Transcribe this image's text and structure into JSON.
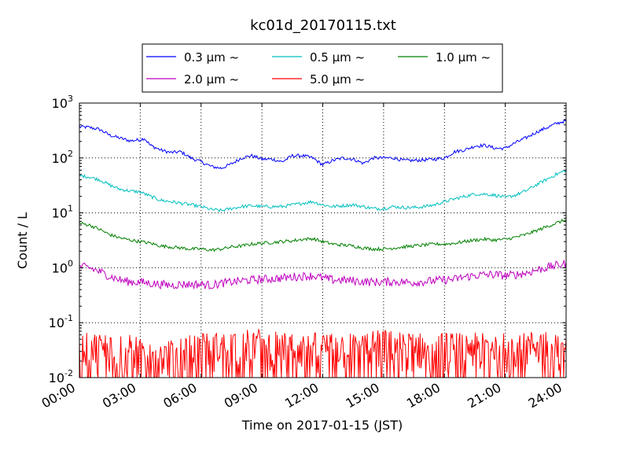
{
  "chart_data": {
    "type": "line",
    "title": "kc01d_20170115.txt",
    "xlabel": "Time on 2017-01-15 (JST)",
    "ylabel": "Count / L",
    "x_tick_labels": [
      "00:00",
      "03:00",
      "06:00",
      "09:00",
      "12:00",
      "15:00",
      "18:00",
      "21:00",
      "24:00"
    ],
    "x_hours": [
      0,
      3,
      6,
      9,
      12,
      15,
      18,
      21,
      24
    ],
    "xlim": [
      0,
      24
    ],
    "yscale": "log",
    "ylim": [
      0.01,
      1000
    ],
    "y_ticks": [
      {
        "value": 0.01,
        "base": "10",
        "exp": "-2"
      },
      {
        "value": 0.1,
        "base": "10",
        "exp": "-1"
      },
      {
        "value": 1,
        "base": "10",
        "exp": "0"
      },
      {
        "value": 10,
        "base": "10",
        "exp": "1"
      },
      {
        "value": 100,
        "base": "10",
        "exp": "2"
      },
      {
        "value": 1000,
        "base": "10",
        "exp": "3"
      }
    ],
    "grid": true,
    "legend_placement": "top-center, above plot",
    "series": [
      {
        "name": "0.3 μm ~",
        "color": "#0000ff",
        "x": [
          0,
          0.5,
          1,
          1.5,
          2,
          2.5,
          3,
          3.2,
          3.5,
          4,
          4.5,
          5,
          5.5,
          6,
          6.5,
          7,
          7.5,
          8,
          8.5,
          9,
          9.5,
          10,
          10.5,
          11,
          11.5,
          12,
          12.5,
          13,
          13.5,
          14,
          14.5,
          15,
          15.5,
          16,
          16.5,
          17,
          17.5,
          18,
          18.5,
          19,
          19.5,
          20,
          20.5,
          21,
          21.5,
          22,
          22.5,
          23,
          23.5,
          24
        ],
        "y": [
          370,
          360,
          330,
          260,
          230,
          205,
          215,
          230,
          170,
          140,
          125,
          130,
          100,
          85,
          70,
          65,
          78,
          100,
          110,
          95,
          95,
          85,
          110,
          110,
          100,
          75,
          90,
          100,
          95,
          80,
          100,
          100,
          100,
          90,
          90,
          92,
          95,
          100,
          130,
          140,
          165,
          170,
          150,
          150,
          190,
          230,
          290,
          350,
          420,
          480
        ]
      },
      {
        "name": "0.5 μm ~",
        "color": "#00bfbf",
        "x": [
          0,
          0.5,
          1,
          1.5,
          2,
          2.5,
          3,
          3.5,
          4,
          4.5,
          5,
          5.5,
          6,
          6.5,
          7,
          7.5,
          8,
          8.5,
          9,
          9.5,
          10,
          10.5,
          11,
          11.5,
          12,
          12.5,
          13,
          13.5,
          14,
          14.5,
          15,
          15.5,
          16,
          16.5,
          17,
          17.5,
          18,
          18.5,
          19,
          19.5,
          20,
          20.5,
          21,
          21.5,
          22,
          22.5,
          23,
          23.5,
          24
        ],
        "y": [
          48,
          45,
          40,
          32,
          27,
          25,
          24,
          20,
          17,
          16,
          15,
          14,
          13,
          11.5,
          11,
          12,
          13,
          13.5,
          13,
          13,
          13,
          14,
          15,
          16,
          14,
          13,
          13.5,
          14,
          13,
          12,
          12,
          13,
          12.5,
          12.5,
          13,
          14,
          16,
          18,
          20,
          22,
          22,
          21,
          19,
          21,
          25,
          32,
          40,
          50,
          60
        ]
      },
      {
        "name": "1.0 μm ~",
        "color": "#008000",
        "x": [
          0,
          0.5,
          1,
          1.5,
          2,
          2.5,
          3,
          3.5,
          4,
          4.5,
          5,
          5.5,
          6,
          6.5,
          7,
          7.5,
          8,
          8.5,
          9,
          9.5,
          10,
          10.5,
          11,
          11.5,
          12,
          12.5,
          13,
          13.5,
          14,
          14.5,
          15,
          15.5,
          16,
          16.5,
          17,
          17.5,
          18,
          18.5,
          19,
          19.5,
          20,
          20.5,
          21,
          21.5,
          22,
          22.5,
          23,
          23.5,
          24
        ],
        "y": [
          6.5,
          6,
          5,
          4,
          3.5,
          3.2,
          3,
          2.8,
          2.5,
          2.4,
          2.3,
          2.2,
          2.2,
          2.1,
          2.2,
          2.4,
          2.5,
          2.7,
          2.8,
          2.9,
          3,
          3.1,
          3.3,
          3.4,
          3,
          2.7,
          2.6,
          2.5,
          2.3,
          2.2,
          2.2,
          2.3,
          2.4,
          2.5,
          2.6,
          2.7,
          2.7,
          2.8,
          3,
          3.2,
          3.3,
          3.2,
          3.3,
          3.6,
          4,
          4.7,
          5.5,
          6.5,
          7.5
        ]
      },
      {
        "name": "2.0 μm ~",
        "color": "#bf00bf",
        "x": [
          0,
          0.5,
          1,
          1.5,
          2,
          2.5,
          3,
          3.5,
          4,
          4.5,
          5,
          5.5,
          6,
          6.5,
          7,
          7.5,
          8,
          8.5,
          9,
          9.5,
          10,
          10.5,
          11,
          11.5,
          12,
          12.5,
          13,
          13.5,
          14,
          14.5,
          15,
          15.5,
          16,
          16.5,
          17,
          17.5,
          18,
          18.5,
          19,
          19.5,
          20,
          20.5,
          21,
          21.5,
          22,
          22.5,
          23,
          23.5,
          24
        ],
        "y": [
          1.05,
          1,
          0.85,
          0.7,
          0.6,
          0.55,
          0.55,
          0.52,
          0.5,
          0.48,
          0.5,
          0.5,
          0.5,
          0.48,
          0.52,
          0.55,
          0.58,
          0.6,
          0.62,
          0.63,
          0.65,
          0.68,
          0.7,
          0.72,
          0.65,
          0.6,
          0.6,
          0.58,
          0.56,
          0.55,
          0.55,
          0.56,
          0.55,
          0.54,
          0.56,
          0.58,
          0.6,
          0.62,
          0.68,
          0.72,
          0.75,
          0.75,
          0.72,
          0.75,
          0.8,
          0.9,
          1,
          1.1,
          1.2
        ]
      },
      {
        "name": "5.0 μm ~",
        "color": "#ff0000",
        "note_dense_noise": true,
        "x": [
          0,
          1,
          2,
          3,
          4,
          5,
          6,
          7,
          8,
          9,
          10,
          11,
          12,
          13,
          14,
          15,
          16,
          17,
          18,
          19,
          20,
          21,
          22,
          23,
          24
        ],
        "y": [
          0.03,
          0.03,
          0.03,
          0.025,
          0.02,
          0.025,
          0.03,
          0.03,
          0.035,
          0.035,
          0.03,
          0.03,
          0.03,
          0.03,
          0.03,
          0.035,
          0.03,
          0.03,
          0.03,
          0.03,
          0.03,
          0.03,
          0.03,
          0.035,
          0.03
        ]
      }
    ],
    "legend_columns": 3
  }
}
